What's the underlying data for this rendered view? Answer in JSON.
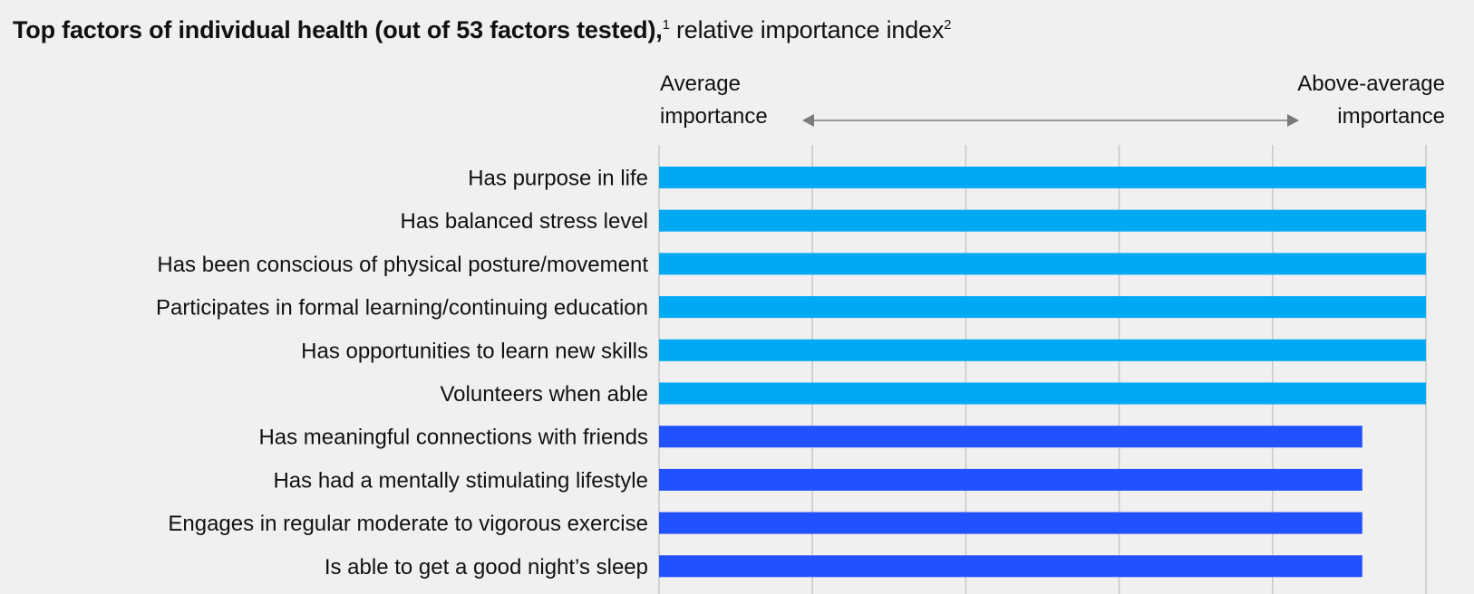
{
  "title": {
    "bold": "Top factors of individual health (out of 53 factors tested),",
    "footnote1": "1",
    "normal": " relative importance index",
    "footnote2": "2"
  },
  "scale": {
    "left_line1": "Average",
    "left_line2": "importance",
    "right_line1": "Above-average",
    "right_line2": "importance"
  },
  "colors": {
    "light_blue": "#00a9f4",
    "dark_blue": "#2251ff",
    "grid": "#c8c8c8",
    "arrow": "#7a7a7a"
  },
  "chart_data": {
    "type": "bar",
    "orientation": "horizontal",
    "categories": [
      "Has purpose in life",
      "Has balanced stress level",
      "Has been conscious of physical posture/movement",
      "Participates in formal learning/continuing education",
      "Has opportunities to learn new skills",
      "Volunteers when able",
      "Has meaningful connections with friends",
      "Has had a mentally stimulating lifestyle",
      "Engages in regular moderate to vigorous exercise",
      "Is able to get a good night’s sleep"
    ],
    "values": [
      100,
      100,
      100,
      100,
      100,
      100,
      91.7,
      91.7,
      91.7,
      91.7
    ],
    "bar_colors": [
      "light_blue",
      "light_blue",
      "light_blue",
      "light_blue",
      "light_blue",
      "light_blue",
      "dark_blue",
      "dark_blue",
      "dark_blue",
      "dark_blue"
    ],
    "xlim": [
      0,
      100
    ],
    "gridlines": [
      0,
      20,
      40,
      60,
      80,
      100
    ],
    "grid": true,
    "legend": "none"
  }
}
